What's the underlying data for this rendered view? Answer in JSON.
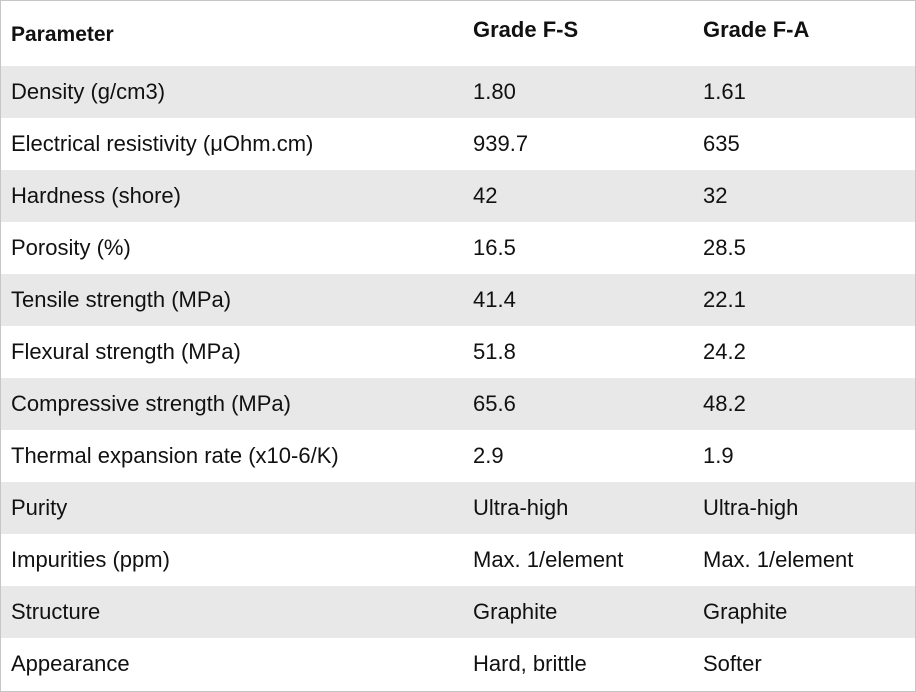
{
  "table": {
    "headers": [
      "Parameter",
      "Grade F-S",
      "Grade F-A"
    ],
    "rows": [
      [
        "Density (g/cm3)",
        "1.80",
        "1.61"
      ],
      [
        "Electrical resistivity (μOhm.cm)",
        "939.7",
        "635"
      ],
      [
        "Hardness (shore)",
        "42",
        "32"
      ],
      [
        "Porosity (%)",
        "16.5",
        "28.5"
      ],
      [
        "Tensile strength (MPa)",
        "41.4",
        "22.1"
      ],
      [
        "Flexural strength (MPa)",
        "51.8",
        "24.2"
      ],
      [
        "Compressive strength (MPa)",
        "65.6",
        "48.2"
      ],
      [
        "Thermal expansion rate (x10-6/K)",
        "2.9",
        "1.9"
      ],
      [
        "Purity",
        "Ultra-high",
        "Ultra-high"
      ],
      [
        "Impurities (ppm)",
        "Max. 1/element",
        "Max. 1/element"
      ],
      [
        "Structure",
        "Graphite",
        "Graphite"
      ],
      [
        "Appearance",
        "Hard, brittle",
        "Softer"
      ]
    ]
  }
}
